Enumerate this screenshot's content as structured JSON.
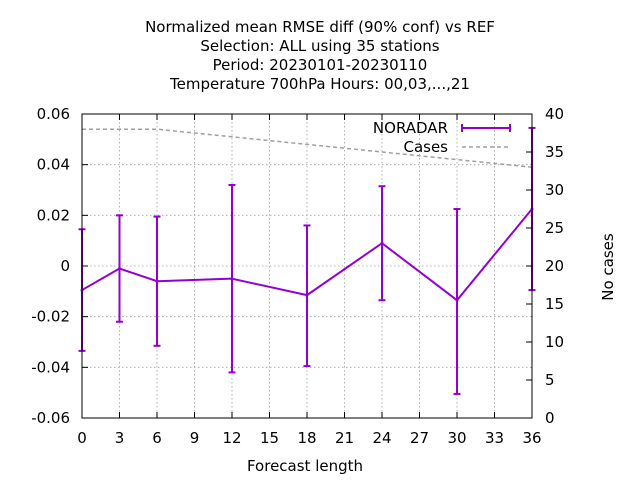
{
  "chart_data": {
    "type": "line",
    "title_lines": [
      "Normalized mean RMSE diff (90% conf) vs REF",
      "Selection: ALL using    35 stations",
      "Period: 20230101-20230110",
      "Temperature 700hPa   Hours:  00,03,...,21"
    ],
    "xlabel": "Forecast length",
    "ylabel": "",
    "y2label": "No cases",
    "xlim": [
      0,
      36
    ],
    "ylim": [
      -0.06,
      0.06
    ],
    "y2lim": [
      0,
      40
    ],
    "x_ticks": [
      "0",
      "3",
      "6",
      "9",
      "12",
      "15",
      "18",
      "21",
      "24",
      "27",
      "30",
      "33",
      "36"
    ],
    "y_ticks": [
      "0.06",
      "0.04",
      "0.02",
      "0",
      "-0.02",
      "-0.04",
      "-0.06"
    ],
    "y2_ticks": [
      "40",
      "35",
      "30",
      "25",
      "20",
      "15",
      "10",
      "5",
      "0"
    ],
    "grid": true,
    "legend_position": "top-right",
    "series": [
      {
        "name": "NORADAR",
        "axis": "y",
        "color": "#9400d3",
        "style": "errorbars",
        "x": [
          0,
          3,
          6,
          12,
          18,
          24,
          30,
          36
        ],
        "y": [
          -0.0095,
          -0.001,
          -0.006,
          -0.005,
          -0.0115,
          0.009,
          -0.0135,
          0.0225
        ],
        "y_low": [
          -0.0335,
          -0.022,
          -0.0315,
          -0.042,
          -0.0395,
          -0.0135,
          -0.0505,
          -0.0095
        ],
        "y_high": [
          0.0145,
          0.02,
          0.0195,
          0.032,
          0.016,
          0.0315,
          0.0225,
          0.0545
        ]
      },
      {
        "name": "Cases",
        "axis": "y2",
        "color": "#a0a0a4",
        "style": "dashed",
        "x": [
          0,
          3,
          6,
          9,
          12,
          15,
          18,
          21,
          24,
          27,
          30,
          33,
          36
        ],
        "y": [
          38,
          38,
          38,
          37.5,
          37,
          36.5,
          36,
          35.5,
          35,
          34.5,
          34,
          33.5,
          33
        ]
      }
    ]
  }
}
